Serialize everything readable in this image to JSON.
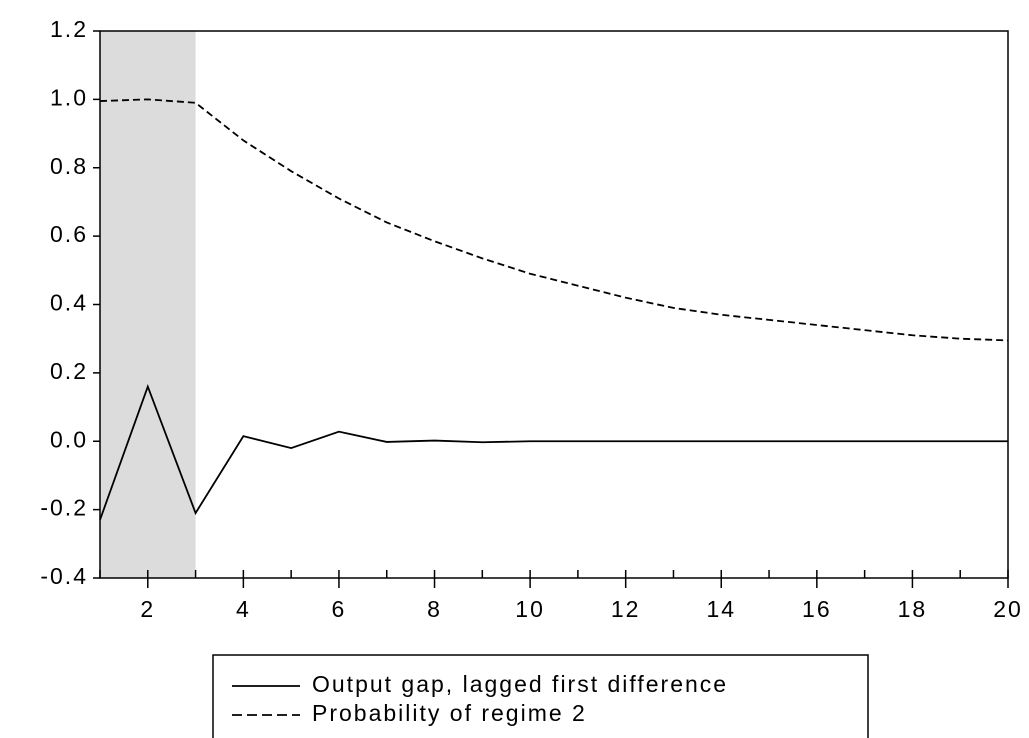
{
  "chart_data": {
    "type": "line",
    "x": [
      1,
      2,
      3,
      4,
      5,
      6,
      7,
      8,
      9,
      10,
      11,
      12,
      13,
      14,
      15,
      16,
      17,
      18,
      19,
      20
    ],
    "series": [
      {
        "name": "Output gap, lagged first difference",
        "color": "#000000",
        "dash": "solid",
        "values": [
          -0.23,
          0.16,
          -0.21,
          0.015,
          -0.02,
          0.028,
          -0.002,
          0.002,
          -0.003,
          0,
          0,
          0,
          0,
          0,
          0,
          0,
          0,
          0,
          0,
          0
        ]
      },
      {
        "name": "Probability of regime 2",
        "color": "#000000",
        "dash": "dashed",
        "values": [
          0.995,
          1.0,
          0.99,
          0.88,
          0.79,
          0.71,
          0.64,
          0.585,
          0.535,
          0.49,
          0.455,
          0.42,
          0.39,
          0.37,
          0.355,
          0.34,
          0.325,
          0.31,
          0.3,
          0.295
        ]
      }
    ],
    "xlim": [
      1,
      20
    ],
    "xticks": [
      2,
      4,
      6,
      8,
      10,
      12,
      14,
      16,
      18,
      20
    ],
    "ylim": [
      -0.4,
      1.2
    ],
    "yticks": [
      -0.4,
      -0.2,
      {
        "value": 0,
        "label": "0.0"
      },
      0.2,
      0.4,
      0.6,
      0.8,
      {
        "value": 1,
        "label": "1.0"
      },
      1.2
    ],
    "shade": {
      "x": [
        1,
        3
      ],
      "color": "#dcdcdc"
    },
    "legend": "bottom"
  }
}
